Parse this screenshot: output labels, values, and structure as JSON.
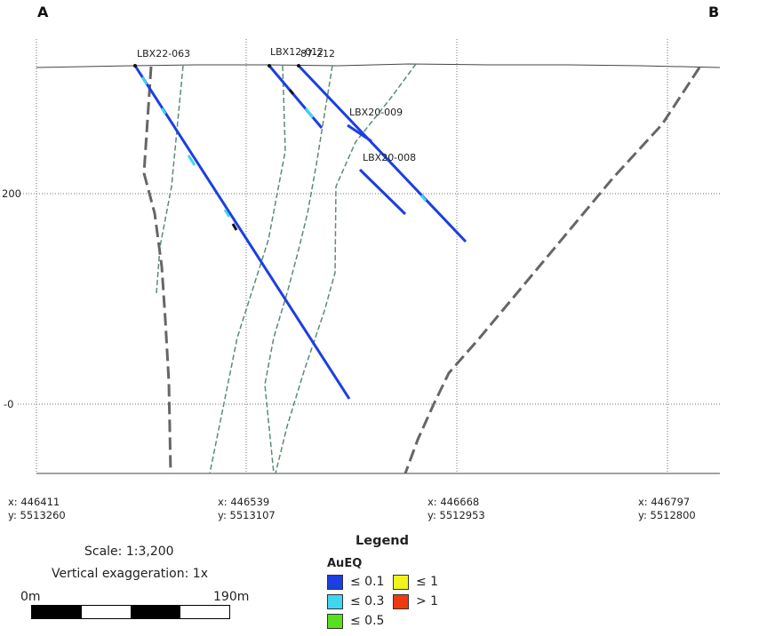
{
  "corners": {
    "left": "A",
    "right": "B"
  },
  "y_axis_labels": [
    "200",
    "-0"
  ],
  "coordinates": [
    {
      "x": "x: 446411",
      "y": "y: 5513260"
    },
    {
      "x": "x: 446539",
      "y": "y: 5513107"
    },
    {
      "x": "x: 446668",
      "y": "y: 5512953"
    },
    {
      "x": "x: 446797",
      "y": "y: 5512800"
    }
  ],
  "drillholes": [
    {
      "label": "LBX22-063"
    },
    {
      "label": "LBX12-012"
    },
    {
      "label": "87-212"
    },
    {
      "label": "LBX20-009"
    },
    {
      "label": "LBX20-008"
    }
  ],
  "scale": {
    "ratio_text": "Scale: 1:3,200",
    "exaggeration_text": "Vertical exaggeration: 1x",
    "start_label": "0m",
    "end_label": "190m"
  },
  "legend": {
    "title": "Legend",
    "variable": "AuEQ",
    "items": [
      {
        "label": "≤ 0.1",
        "color": "#1c3fe0"
      },
      {
        "label": "≤ 0.3",
        "color": "#3fd6ef"
      },
      {
        "label": "≤ 0.5",
        "color": "#58e020"
      },
      {
        "label": "≤ 1",
        "color": "#f2f21c"
      },
      {
        "label": "> 1",
        "color": "#ef3a10"
      }
    ]
  },
  "colors": {
    "drillhole": "#1c3fe0",
    "fault_dashed": "#666666",
    "contact_dashed": "#5e8a72",
    "topography": "#444444",
    "grid": "#777777"
  }
}
